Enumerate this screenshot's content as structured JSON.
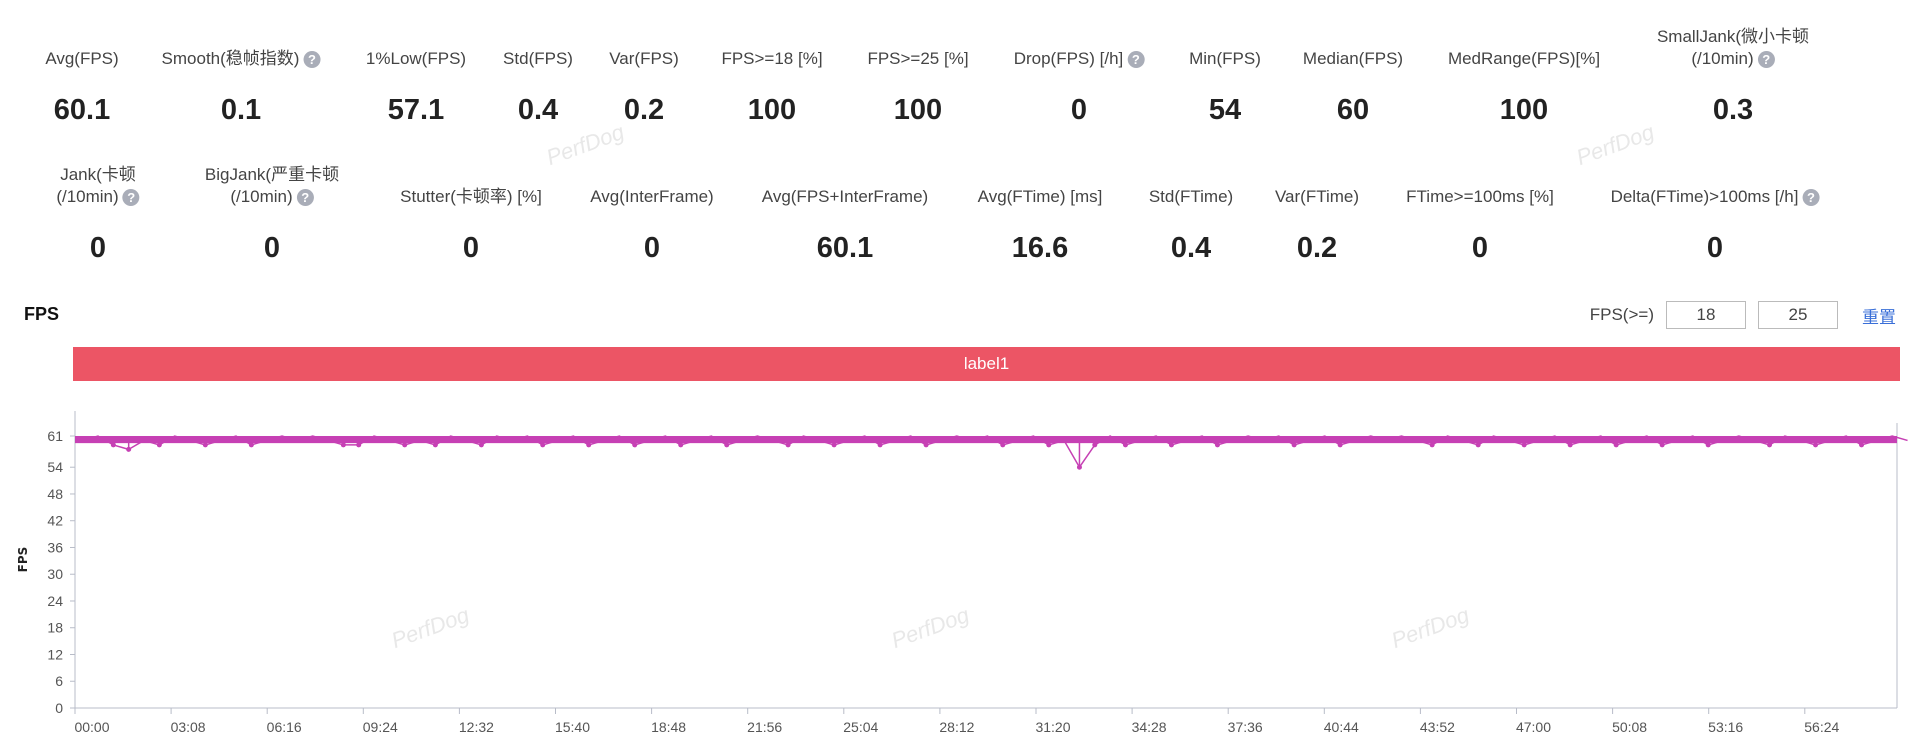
{
  "stats_row1": [
    {
      "label": [
        "Avg(FPS)"
      ],
      "value": "60.1",
      "help": false
    },
    {
      "label": [
        "Smooth(稳帧指数)"
      ],
      "value": "0.1",
      "help": true
    },
    {
      "label": [
        "1%Low(FPS)"
      ],
      "value": "57.1",
      "help": false
    },
    {
      "label": [
        "Std(FPS)"
      ],
      "value": "0.4",
      "help": false
    },
    {
      "label": [
        "Var(FPS)"
      ],
      "value": "0.2",
      "help": false
    },
    {
      "label": [
        "FPS>=18 [%]"
      ],
      "value": "100",
      "help": false
    },
    {
      "label": [
        "FPS>=25 [%]"
      ],
      "value": "100",
      "help": false
    },
    {
      "label": [
        "Drop(FPS) [/h]"
      ],
      "value": "0",
      "help": true
    },
    {
      "label": [
        "Min(FPS)"
      ],
      "value": "54",
      "help": false
    },
    {
      "label": [
        "Median(FPS)"
      ],
      "value": "60",
      "help": false
    },
    {
      "label": [
        "MedRange(FPS)[%]"
      ],
      "value": "100",
      "help": false
    },
    {
      "label": [
        "SmallJank(微小卡顿",
        "(/10min)"
      ],
      "value": "0.3",
      "help": true
    }
  ],
  "stats_row2": [
    {
      "label": [
        "Jank(卡顿",
        "(/10min)"
      ],
      "value": "0",
      "help": true
    },
    {
      "label": [
        "BigJank(严重卡顿",
        "(/10min)"
      ],
      "value": "0",
      "help": true
    },
    {
      "label": [
        "Stutter(卡顿率) [%]"
      ],
      "value": "0",
      "help": false
    },
    {
      "label": [
        "Avg(InterFrame)"
      ],
      "value": "0",
      "help": false
    },
    {
      "label": [
        "Avg(FPS+InterFrame)"
      ],
      "value": "60.1",
      "help": false
    },
    {
      "label": [
        "Avg(FTime) [ms]"
      ],
      "value": "16.6",
      "help": false
    },
    {
      "label": [
        "Std(FTime)"
      ],
      "value": "0.4",
      "help": false
    },
    {
      "label": [
        "Var(FTime)"
      ],
      "value": "0.2",
      "help": false
    },
    {
      "label": [
        "FTime>=100ms [%]"
      ],
      "value": "0",
      "help": false
    },
    {
      "label": [
        "Delta(FTime)>100ms [/h]"
      ],
      "value": "0",
      "help": true
    }
  ],
  "help_glyph": "?",
  "fps_section": {
    "title": "FPS",
    "threshold_label": "FPS(>=)",
    "threshold_1": "18",
    "threshold_2": "25",
    "reset_label": "重置",
    "label_bar": "label1",
    "label_bar_color": "#ec5565"
  },
  "watermark": "PerfDog",
  "chart_data": {
    "type": "line",
    "ylabel": "FPS",
    "xlabel": "",
    "series_color": "#c640b4",
    "yticks": [
      0,
      6,
      12,
      18,
      24,
      30,
      36,
      42,
      48,
      54,
      61
    ],
    "ylim": [
      0,
      65
    ],
    "xticks": [
      "00:00",
      "03:08",
      "06:16",
      "09:24",
      "12:32",
      "15:40",
      "18:48",
      "21:56",
      "25:04",
      "28:12",
      "31:20",
      "34:28",
      "37:36",
      "40:44",
      "43:52",
      "47:00",
      "50:08",
      "53:16",
      "56:24"
    ],
    "x_interval_seconds": 30,
    "values": [
      60,
      61,
      59,
      58,
      60,
      59,
      61,
      60,
      59,
      60,
      61,
      59,
      60,
      61,
      60,
      61,
      60,
      59,
      59,
      61,
      60,
      59,
      60,
      59,
      61,
      60,
      59,
      61,
      60,
      61,
      59,
      60,
      61,
      59,
      60,
      61,
      59,
      60,
      61,
      59,
      60,
      61,
      59,
      60,
      61,
      60,
      59,
      61,
      60,
      59,
      60,
      61,
      59,
      60,
      61,
      59,
      60,
      61,
      60,
      61,
      59,
      60,
      61,
      59,
      60,
      54,
      59,
      61,
      59,
      60,
      61,
      59,
      60,
      61,
      59,
      60,
      61,
      60,
      61,
      59,
      60,
      61,
      59,
      60,
      61,
      60,
      61,
      60,
      59,
      61,
      60,
      59,
      61,
      60,
      59,
      60,
      61,
      59,
      60,
      61,
      59,
      60,
      61,
      59,
      60,
      61,
      59,
      60,
      61,
      60,
      59,
      61,
      60,
      59,
      60,
      61,
      59,
      60,
      61,
      60
    ]
  }
}
